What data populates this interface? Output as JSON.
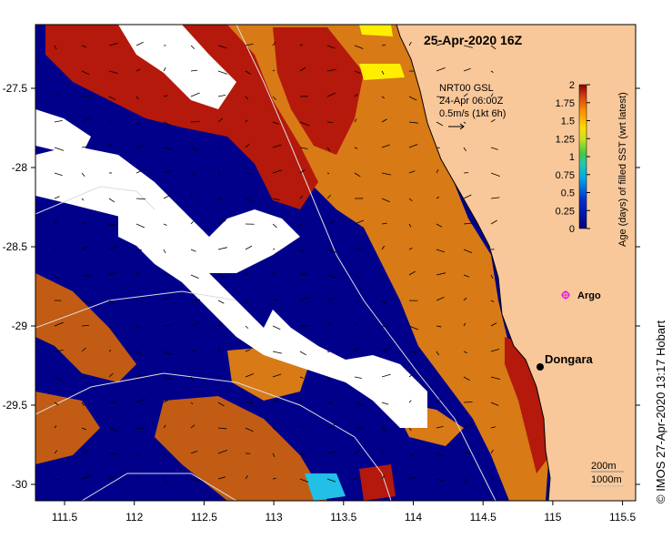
{
  "title": "25-Apr-2020 16Z",
  "currents_legend": {
    "line1": "NRT00 GSL",
    "line2": "24-Apr 06:00Z",
    "line3": "0.5m/s (1kt 6h)"
  },
  "colorbar": {
    "label": "Age (days) of filled SST (wrt latest)",
    "ticks": [
      "0",
      "0.25",
      "0.5",
      "0.75",
      "1",
      "1.25",
      "1.5",
      "1.75",
      "2"
    ],
    "min": 0,
    "max": 2
  },
  "x_axis": {
    "ticks": [
      "111.5",
      "112",
      "112.5",
      "113",
      "113.5",
      "114",
      "114.5",
      "115",
      "115.5"
    ]
  },
  "y_axis": {
    "ticks": [
      "-27.5",
      "-28",
      "-28.5",
      "-29",
      "-29.5",
      "-30"
    ]
  },
  "places": {
    "dongara": "Dongara",
    "argo": "Argo"
  },
  "contour_legend": {
    "line1": "200m",
    "line2": "1000m"
  },
  "credit": "© IMOS 27-Apr-2020 13:17 Hobart",
  "colors": {
    "land": "#f9c89a",
    "ocean_recent": "#00008b",
    "mid_age": "#d87a16",
    "old_age": "#b4190b",
    "brown": "#c25c14",
    "missing": "#ffffff",
    "yellow": "#ffee00",
    "cyan": "#22bfe6",
    "argo": "#e020e0"
  }
}
